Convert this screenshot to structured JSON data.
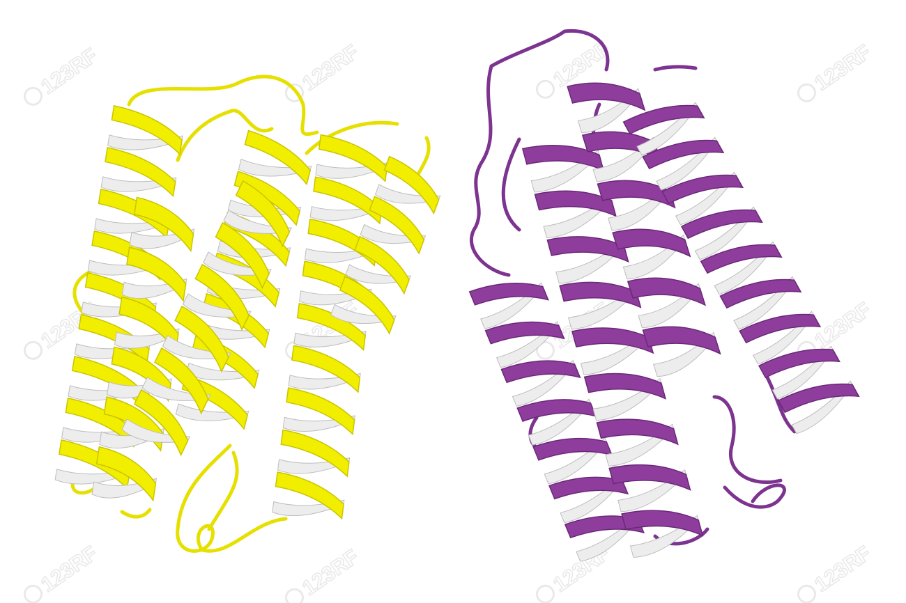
{
  "image": {
    "subject": "protein-ribbon-models",
    "background_color": "#ffffff"
  },
  "models": [
    {
      "id": "left-model",
      "helix_color": "#f2ee00",
      "helix_shade_color": "#c9c400",
      "helix_inner_color": "#ededed",
      "loop_color": "#e6e000",
      "helix_count": 6
    },
    {
      "id": "right-model",
      "helix_color": "#8e3d9c",
      "helix_shade_color": "#6a2878",
      "helix_inner_color": "#ededed",
      "loop_color": "#7d3390",
      "helix_count": 4
    }
  ],
  "watermark": {
    "text": "123RF",
    "color": "#d8d8d8"
  }
}
